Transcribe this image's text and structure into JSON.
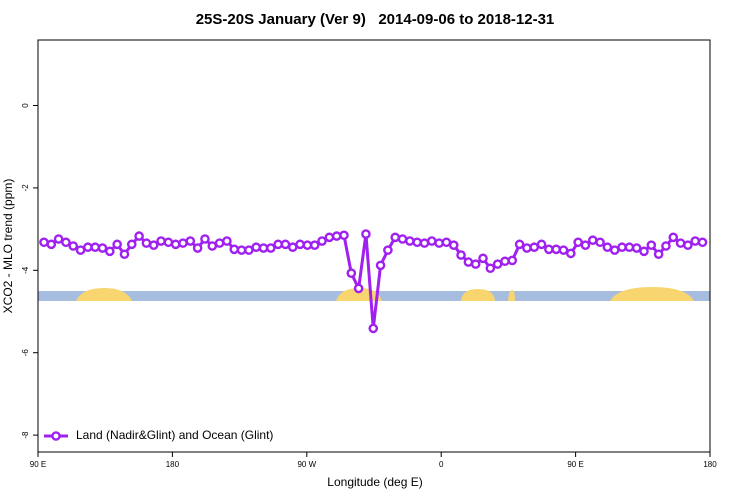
{
  "chart_data": {
    "type": "line",
    "title": "25S-20S January (Ver 9)   2014-09-06 to 2018-12-31",
    "x_label": "Longitude (deg E)",
    "y_label": "XCO2 - MLO trend (ppm)",
    "xlim": [
      90,
      540
    ],
    "ylim": [
      -8.41,
      1.59
    ],
    "xticks": [
      {
        "value": 90,
        "label": "90 E"
      },
      180,
      {
        "value": 270,
        "label": "90 W"
      },
      {
        "value": 360,
        "label": "0"
      },
      {
        "value": 450,
        "label": "90 E"
      },
      {
        "value": 540,
        "label": "180"
      }
    ],
    "yticks": [
      0,
      -2,
      -4,
      -6,
      -8
    ],
    "legend_position": "bottom-left",
    "x": [
      94,
      98.9,
      103.8,
      108.7,
      113.6,
      118.5,
      123.4,
      128.3,
      133.2,
      138.1,
      143,
      147.9,
      152.8,
      157.7,
      162.6,
      167.5,
      172.4,
      177.3,
      182.2,
      187.1,
      192,
      196.9,
      201.8,
      206.7,
      211.6,
      216.5,
      221.4,
      226.3,
      231.2,
      236.1,
      241,
      245.9,
      250.8,
      255.7,
      260.6,
      265.5,
      270.4,
      275.3,
      280.2,
      285.1,
      290,
      294.9,
      299.8,
      304.7,
      309.6,
      314.5,
      319.4,
      324.3,
      329.2,
      334.1,
      339,
      343.9,
      348.8,
      353.7,
      358.6,
      363.5,
      368.4,
      373.3,
      378.2,
      383.1,
      388,
      392.9,
      397.8,
      402.7,
      407.6,
      412.5,
      417.4,
      422.3,
      427.2,
      432.1,
      437,
      441.9,
      446.8,
      451.7,
      456.6,
      461.5,
      466.4,
      471.3,
      476.2,
      481.1,
      486,
      490.9,
      495.8,
      500.7,
      505.6,
      510.5,
      515.4,
      520.3,
      525.2,
      530.1,
      535
    ],
    "series": [
      {
        "name": "Land (Nadir&Glint) and Ocean (Glint)",
        "color": "#a020f0",
        "values": [
          -3.32,
          -3.37,
          -3.24,
          -3.32,
          -3.41,
          -3.51,
          -3.44,
          -3.44,
          -3.46,
          -3.54,
          -3.37,
          -3.61,
          -3.37,
          -3.17,
          -3.34,
          -3.39,
          -3.29,
          -3.32,
          -3.37,
          -3.34,
          -3.29,
          -3.46,
          -3.24,
          -3.41,
          -3.34,
          -3.29,
          -3.49,
          -3.51,
          -3.51,
          -3.44,
          -3.46,
          -3.46,
          -3.37,
          -3.37,
          -3.44,
          -3.37,
          -3.39,
          -3.39,
          -3.29,
          -3.2,
          -3.17,
          -3.15,
          -4.07,
          -4.44,
          -3.12,
          -5.41,
          -3.88,
          -3.51,
          -3.2,
          -3.24,
          -3.29,
          -3.32,
          -3.34,
          -3.29,
          -3.34,
          -3.32,
          -3.39,
          -3.63,
          -3.8,
          -3.85,
          -3.71,
          -3.95,
          -3.85,
          -3.78,
          -3.76,
          -3.37,
          -3.46,
          -3.44,
          -3.37,
          -3.49,
          -3.49,
          -3.51,
          -3.59,
          -3.32,
          -3.39,
          -3.27,
          -3.32,
          -3.44,
          -3.51,
          -3.44,
          -3.44,
          -3.46,
          -3.54,
          -3.39,
          -3.61,
          -3.41,
          -3.2,
          -3.34,
          -3.39,
          -3.29,
          -3.32
        ]
      }
    ]
  }
}
